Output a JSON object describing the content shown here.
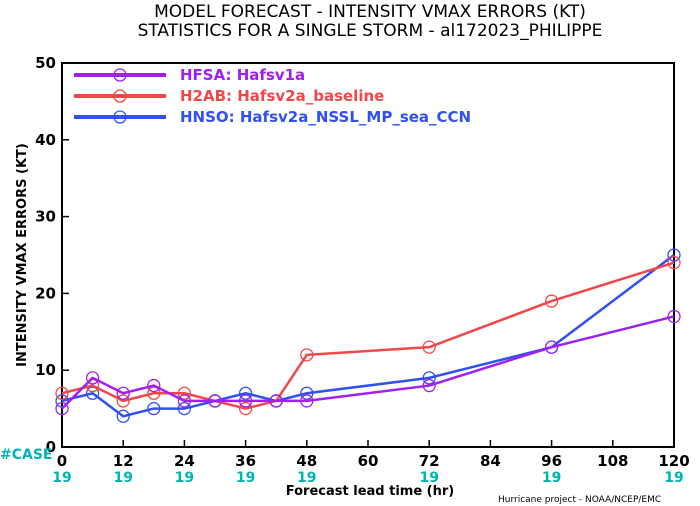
{
  "chart_data": {
    "type": "line",
    "title": "MODEL FORECAST - INTENSITY VMAX ERRORS (KT)",
    "subtitle": "STATISTICS FOR A SINGLE STORM - al172023_PHILIPPE",
    "xlabel": "Forecast lead time (hr)",
    "ylabel": "INTENSITY VMAX ERRORS (KT)",
    "x_ticks": [
      0,
      12,
      24,
      36,
      48,
      60,
      72,
      84,
      96,
      108,
      120
    ],
    "y_ticks": [
      0,
      10,
      20,
      30,
      40,
      50
    ],
    "xlim": [
      0,
      120
    ],
    "ylim": [
      0,
      50
    ],
    "grid": false,
    "legend_position": "top-left",
    "case_label": "#CASE",
    "case_x": [
      0,
      12,
      24,
      36,
      48,
      72,
      96,
      120
    ],
    "case_counts": [
      "19",
      "19",
      "19",
      "19",
      "19",
      "19",
      "19",
      "19"
    ],
    "credit": "Hurricane project - NOAA/NCEP/EMC",
    "series": [
      {
        "id": "HFSA",
        "label": "HFSA:",
        "name": "Hafsv1a",
        "color": "#a020f0",
        "x": [
          0,
          6,
          12,
          18,
          24,
          30,
          36,
          42,
          48,
          72,
          96,
          120
        ],
        "values": [
          5,
          9,
          7,
          8,
          6,
          6,
          6,
          6,
          6,
          8,
          13,
          17
        ]
      },
      {
        "id": "H2AB",
        "label": "H2AB:",
        "name": "Hafsv2a_baseline",
        "color": "#f04848",
        "x": [
          0,
          6,
          12,
          18,
          24,
          30,
          36,
          42,
          48,
          72,
          96,
          120
        ],
        "values": [
          7,
          8,
          6,
          7,
          7,
          6,
          5,
          6,
          12,
          13,
          19,
          24
        ]
      },
      {
        "id": "HNSO",
        "label": "HNSO:",
        "name": "Hafsv2a_NSSL_MP_sea_CCN",
        "color": "#3050f0",
        "x": [
          0,
          6,
          12,
          18,
          24,
          30,
          36,
          42,
          48,
          72,
          96,
          120
        ],
        "values": [
          6,
          7,
          4,
          5,
          5,
          6,
          7,
          6,
          7,
          9,
          13,
          25
        ]
      }
    ]
  }
}
